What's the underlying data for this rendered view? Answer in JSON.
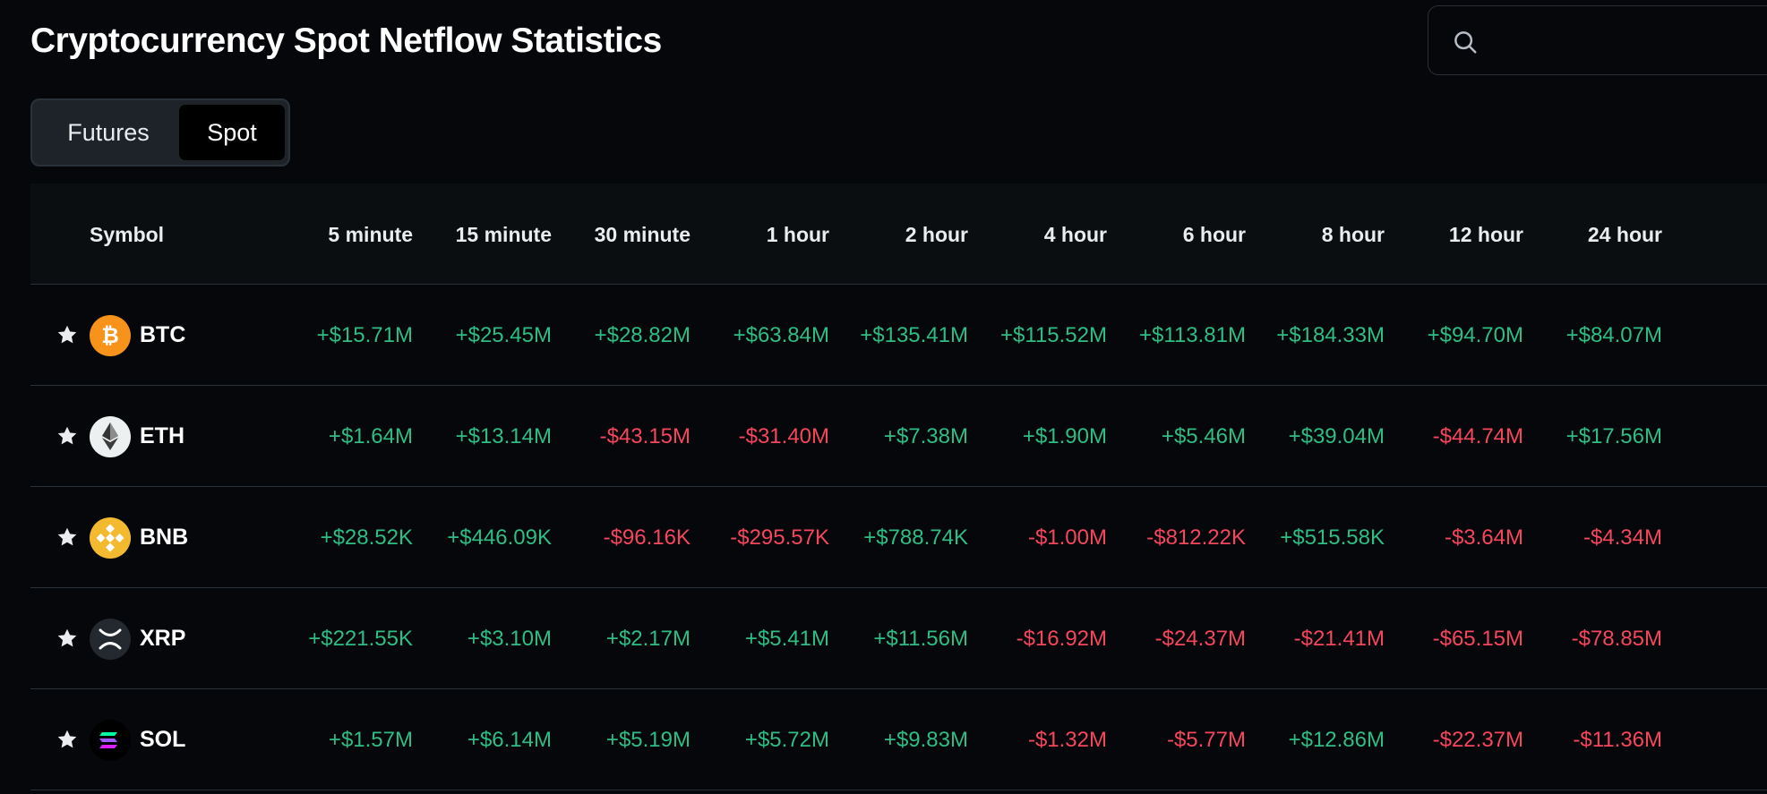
{
  "title": "Cryptocurrency Spot Netflow Statistics",
  "search": {
    "placeholder": "",
    "icon": "search-icon"
  },
  "toggle": {
    "futures_label": "Futures",
    "spot_label": "Spot",
    "selected": "Spot"
  },
  "colors": {
    "positive": "#2ebd85",
    "negative": "#f6465d",
    "background": "#05070a"
  },
  "table": {
    "symbol_header": "Symbol",
    "headers": [
      "5 minute",
      "15 minute",
      "30 minute",
      "1 hour",
      "2 hour",
      "4 hour",
      "6 hour",
      "8 hour",
      "12 hour",
      "24 hour"
    ],
    "rows": [
      {
        "symbol": "BTC",
        "icon": "btc-icon",
        "values": [
          "+$15.71M",
          "+$25.45M",
          "+$28.82M",
          "+$63.84M",
          "+$135.41M",
          "+$115.52M",
          "+$113.81M",
          "+$184.33M",
          "+$94.70M",
          "+$84.07M"
        ]
      },
      {
        "symbol": "ETH",
        "icon": "eth-icon",
        "values": [
          "+$1.64M",
          "+$13.14M",
          "-$43.15M",
          "-$31.40M",
          "+$7.38M",
          "+$1.90M",
          "+$5.46M",
          "+$39.04M",
          "-$44.74M",
          "+$17.56M"
        ]
      },
      {
        "symbol": "BNB",
        "icon": "bnb-icon",
        "values": [
          "+$28.52K",
          "+$446.09K",
          "-$96.16K",
          "-$295.57K",
          "+$788.74K",
          "-$1.00M",
          "-$812.22K",
          "+$515.58K",
          "-$3.64M",
          "-$4.34M"
        ]
      },
      {
        "symbol": "XRP",
        "icon": "xrp-icon",
        "values": [
          "+$221.55K",
          "+$3.10M",
          "+$2.17M",
          "+$5.41M",
          "+$11.56M",
          "-$16.92M",
          "-$24.37M",
          "-$21.41M",
          "-$65.15M",
          "-$78.85M"
        ]
      },
      {
        "symbol": "SOL",
        "icon": "sol-icon",
        "values": [
          "+$1.57M",
          "+$6.14M",
          "+$5.19M",
          "+$5.72M",
          "+$9.83M",
          "-$1.32M",
          "-$5.77M",
          "+$12.86M",
          "-$22.37M",
          "-$11.36M"
        ]
      }
    ]
  }
}
